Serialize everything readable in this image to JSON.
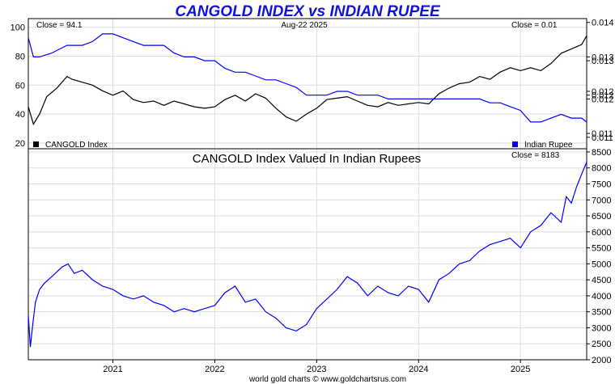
{
  "title": "CANGOLD INDEX vs INDIAN RUPEE",
  "footer": "world gold charts © www.goldchartsrus.com",
  "colors": {
    "title": "#1010e0",
    "gold": "#000000",
    "rupee": "#0000ff",
    "grid": "#dedede"
  },
  "chart_data": [
    {
      "type": "line",
      "date_label": "Aug-22  2025",
      "left_readout": "Close = 94.1",
      "right_readout": "Close = 0.01",
      "x_range": [
        2020.17,
        2025.65
      ],
      "left_axis": {
        "range": [
          16,
          106
        ],
        "ticks": [
          20,
          40,
          60,
          80,
          100
        ]
      },
      "right_axis": {
        "range": [
          0.0107,
          0.0141
        ],
        "ticks": [
          0.011,
          0.011,
          0.012,
          0.012,
          0.012,
          0.013,
          0.013,
          0.014
        ],
        "tick_values": [
          0.011,
          0.0111,
          0.012,
          0.0121,
          0.0122,
          0.013,
          0.0131,
          0.014
        ]
      },
      "grid": true,
      "legend": [
        {
          "name": "CANGOLD Index",
          "placement": "bottom-left"
        },
        {
          "name": "Indian Rupee",
          "placement": "bottom-right"
        }
      ],
      "series": [
        {
          "name": "CANGOLD Index",
          "axis": "left",
          "x": [
            2020.17,
            2020.22,
            2020.28,
            2020.35,
            2020.45,
            2020.55,
            2020.6,
            2020.7,
            2020.8,
            2020.9,
            2021.0,
            2021.1,
            2021.2,
            2021.3,
            2021.4,
            2021.5,
            2021.6,
            2021.7,
            2021.8,
            2021.9,
            2022.0,
            2022.1,
            2022.2,
            2022.3,
            2022.4,
            2022.5,
            2022.6,
            2022.7,
            2022.8,
            2022.9,
            2023.0,
            2023.1,
            2023.2,
            2023.3,
            2023.4,
            2023.5,
            2023.6,
            2023.7,
            2023.8,
            2023.9,
            2024.0,
            2024.1,
            2024.2,
            2024.3,
            2024.4,
            2024.5,
            2024.6,
            2024.7,
            2024.8,
            2024.9,
            2025.0,
            2025.1,
            2025.2,
            2025.3,
            2025.4,
            2025.5,
            2025.6,
            2025.65
          ],
          "y": [
            45,
            33,
            40,
            52,
            58,
            66,
            64,
            62,
            60,
            56,
            53,
            56,
            50,
            48,
            49,
            46,
            49,
            47,
            45,
            44,
            45,
            50,
            53,
            49,
            54,
            51,
            44,
            38,
            35,
            40,
            44,
            50,
            51,
            52,
            49,
            46,
            45,
            48,
            46,
            47,
            48,
            47,
            54,
            58,
            61,
            62,
            66,
            64,
            69,
            72,
            70,
            72,
            70,
            75,
            82,
            85,
            88,
            94.1
          ]
        },
        {
          "name": "Indian Rupee",
          "axis": "right",
          "x": [
            2020.17,
            2020.22,
            2020.28,
            2020.4,
            2020.55,
            2020.7,
            2020.8,
            2020.9,
            2021.0,
            2021.1,
            2021.2,
            2021.3,
            2021.4,
            2021.5,
            2021.6,
            2021.7,
            2021.8,
            2021.9,
            2022.0,
            2022.1,
            2022.2,
            2022.3,
            2022.4,
            2022.5,
            2022.6,
            2022.7,
            2022.8,
            2022.9,
            2023.0,
            2023.1,
            2023.2,
            2023.3,
            2023.4,
            2023.5,
            2023.6,
            2023.7,
            2023.8,
            2023.9,
            2024.0,
            2024.1,
            2024.2,
            2024.3,
            2024.4,
            2024.5,
            2024.6,
            2024.7,
            2024.8,
            2024.9,
            2025.0,
            2025.1,
            2025.2,
            2025.3,
            2025.4,
            2025.5,
            2025.6,
            2025.65
          ],
          "y": [
            0.0136,
            0.0131,
            0.0131,
            0.0132,
            0.0134,
            0.0134,
            0.0135,
            0.0137,
            0.0137,
            0.0136,
            0.0135,
            0.0134,
            0.0134,
            0.0134,
            0.0132,
            0.0131,
            0.0131,
            0.013,
            0.013,
            0.0128,
            0.0127,
            0.0127,
            0.0126,
            0.0125,
            0.0125,
            0.0124,
            0.0123,
            0.0121,
            0.0121,
            0.0121,
            0.0122,
            0.0122,
            0.0121,
            0.0121,
            0.0121,
            0.012,
            0.012,
            0.012,
            0.012,
            0.012,
            0.012,
            0.012,
            0.012,
            0.012,
            0.012,
            0.0119,
            0.0119,
            0.0118,
            0.0117,
            0.0114,
            0.0114,
            0.0115,
            0.0116,
            0.0115,
            0.0115,
            0.0114
          ]
        }
      ]
    },
    {
      "type": "line",
      "title": "CANGOLD Index Valued In Indian Rupees",
      "right_readout": "Close = 8183",
      "x_range": [
        2020.17,
        2025.65
      ],
      "x_ticks": [
        "2021",
        "2022",
        "2023",
        "2024",
        "2025"
      ],
      "x_tick_values": [
        2021,
        2022,
        2023,
        2024,
        2025
      ],
      "right_axis": {
        "range": [
          2000,
          8600
        ],
        "ticks": [
          "2000",
          "2500",
          "3000",
          "3500",
          "4000",
          "4500",
          "5000",
          "5500",
          "6000",
          "6500",
          "7000",
          "7500",
          "8000",
          "8500"
        ],
        "tick_values": [
          2000,
          2500,
          3000,
          3500,
          4000,
          4500,
          5000,
          5500,
          6000,
          6500,
          7000,
          7500,
          8000,
          8500
        ]
      },
      "grid": true,
      "series": [
        {
          "name": "",
          "color": "#0000ff",
          "x": [
            2020.17,
            2020.19,
            2020.21,
            2020.24,
            2020.28,
            2020.33,
            2020.4,
            2020.5,
            2020.56,
            2020.62,
            2020.7,
            2020.8,
            2020.9,
            2021.0,
            2021.1,
            2021.2,
            2021.3,
            2021.4,
            2021.5,
            2021.6,
            2021.7,
            2021.8,
            2021.9,
            2022.0,
            2022.1,
            2022.2,
            2022.3,
            2022.4,
            2022.5,
            2022.6,
            2022.7,
            2022.8,
            2022.9,
            2023.0,
            2023.1,
            2023.2,
            2023.3,
            2023.4,
            2023.5,
            2023.6,
            2023.7,
            2023.8,
            2023.9,
            2024.0,
            2024.1,
            2024.2,
            2024.3,
            2024.4,
            2024.5,
            2024.6,
            2024.7,
            2024.8,
            2024.9,
            2025.0,
            2025.1,
            2025.2,
            2025.3,
            2025.4,
            2025.45,
            2025.5,
            2025.55,
            2025.6,
            2025.65
          ],
          "y": [
            3400,
            2400,
            3000,
            3800,
            4200,
            4400,
            4600,
            4900,
            5000,
            4700,
            4800,
            4500,
            4300,
            4200,
            4000,
            3900,
            4000,
            3800,
            3700,
            3500,
            3600,
            3500,
            3600,
            3700,
            4100,
            4300,
            3800,
            3900,
            3500,
            3300,
            3000,
            2900,
            3100,
            3600,
            3900,
            4200,
            4600,
            4400,
            4000,
            4300,
            4100,
            4000,
            4300,
            4200,
            3800,
            4500,
            4700,
            5000,
            5100,
            5400,
            5600,
            5700,
            5800,
            5500,
            6000,
            6200,
            6600,
            6300,
            7100,
            6900,
            7400,
            7800,
            8183
          ]
        }
      ]
    }
  ]
}
